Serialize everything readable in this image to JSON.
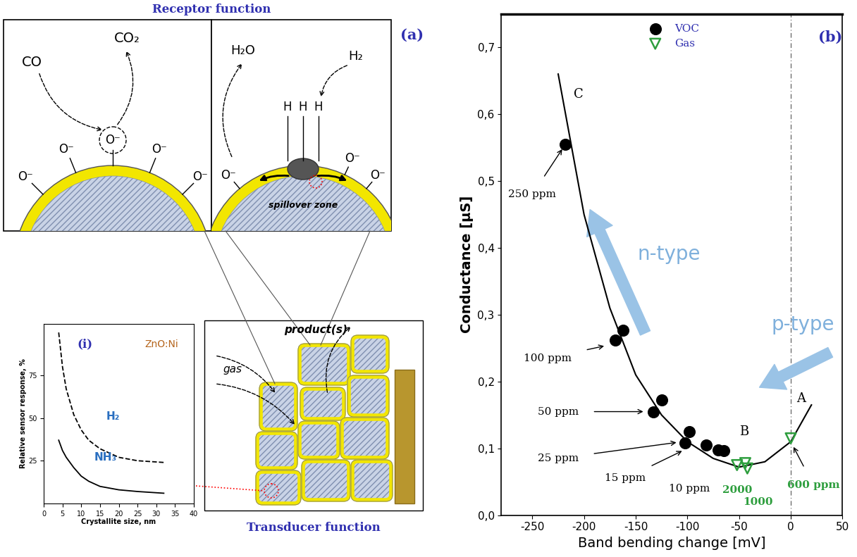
{
  "diagram": {
    "header": "Receptor function",
    "panel_label": "(a)",
    "footer": "Transducer function",
    "co_inset": {
      "reactant": "CO",
      "product": "CO₂",
      "adsorbates": [
        "O⁻",
        "O⁻",
        "O⁻",
        "O⁻",
        "O⁻"
      ]
    },
    "h2_inset": {
      "reactant": "H₂",
      "product": "H₂O",
      "atoms": [
        "H",
        "H",
        "H"
      ],
      "adsorbates": [
        "O⁻",
        "O⁻",
        "O⁻"
      ],
      "zone": "spillover zone"
    },
    "film": {
      "inflow": "gas",
      "outflow": "product(s)"
    }
  },
  "chart_data": [
    {
      "type": "line",
      "panel_label": "(i)",
      "annotation": "ZnO:Ni",
      "xlabel": "Crystallite size, nm",
      "ylabel": "Relative sensor response, %",
      "x": [
        4,
        5,
        6,
        8,
        10,
        12,
        15,
        20,
        25,
        32
      ],
      "series": [
        {
          "name": "H₂",
          "color": "#000000",
          "line_style": "dashed",
          "values": [
            100,
            80,
            67,
            52,
            43,
            37,
            32,
            27,
            25,
            24
          ]
        },
        {
          "name": "NH₃",
          "color": "#000000",
          "line_style": "solid",
          "values": [
            37,
            31,
            27,
            21,
            16,
            13,
            10,
            8,
            7,
            6
          ]
        }
      ],
      "xlim": [
        0,
        40
      ],
      "ylim": [
        0,
        105
      ],
      "xticks": [
        0,
        5,
        10,
        15,
        20,
        25,
        30,
        35,
        40
      ],
      "yticks": [
        25,
        50,
        75
      ]
    },
    {
      "type": "scatter",
      "panel_label": "(b)",
      "xlabel": "Band bending change [mV]",
      "ylabel": "Conductance [µS]",
      "series": [
        {
          "name": "VOC",
          "type": "scatter",
          "color": "#000000",
          "marker": "circle",
          "x": [
            -218,
            -170,
            -162,
            -133,
            -125,
            -102,
            -98,
            -82,
            -70,
            -65
          ],
          "values": [
            0.555,
            0.262,
            0.277,
            0.155,
            0.172,
            0.108,
            0.125,
            0.105,
            0.098,
            0.097
          ]
        },
        {
          "name": "Gas",
          "type": "scatter",
          "color": "#2e9e3e",
          "marker": "open_triangle_down",
          "x": [
            -52,
            -44,
            -42,
            0
          ],
          "values": [
            0.075,
            0.078,
            0.07,
            0.115
          ]
        },
        {
          "type": "line",
          "color": "#000000",
          "line_style": "solid",
          "x": [
            -225,
            -200,
            -175,
            -150,
            -125,
            -100,
            -75,
            -50,
            -25,
            0,
            20
          ],
          "values": [
            0.66,
            0.45,
            0.31,
            0.21,
            0.15,
            0.11,
            0.085,
            0.072,
            0.08,
            0.11,
            0.165
          ]
        }
      ],
      "legend": "upper center",
      "xlim": [
        -280,
        50
      ],
      "ylim": [
        0,
        0.75
      ],
      "xticks": [
        -250,
        -200,
        -150,
        -100,
        -50,
        0,
        50
      ],
      "yticks": [
        {
          "value": 0.0,
          "label": "0,0"
        },
        {
          "value": 0.1,
          "label": "0,1"
        },
        {
          "value": 0.2,
          "label": "0,2"
        },
        {
          "value": 0.3,
          "label": "0,3"
        },
        {
          "value": 0.4,
          "label": "0,4"
        },
        {
          "value": 0.5,
          "label": "0,5"
        },
        {
          "value": 0.6,
          "label": "0,6"
        },
        {
          "value": 0.7,
          "label": "0,7"
        }
      ],
      "vline": 0,
      "points": [
        {
          "label": "C",
          "x": -218,
          "y": 0.555
        },
        {
          "label": "B",
          "x": -45,
          "y": 0.075
        },
        {
          "label": "A",
          "x": 0,
          "y": 0.115
        }
      ],
      "annotations": [
        {
          "text": "250 ppm",
          "x": -218,
          "y": 0.555,
          "color": "#000000"
        },
        {
          "text": "100 ppm",
          "x": -175,
          "y": 0.255,
          "color": "#000000"
        },
        {
          "text": "50 ppm",
          "x": -137,
          "y": 0.155,
          "color": "#000000"
        },
        {
          "text": "25 ppm",
          "x": -105,
          "y": 0.11,
          "color": "#000000"
        },
        {
          "text": "15 ppm",
          "x": -100,
          "y": 0.1,
          "color": "#000000"
        },
        {
          "text": "10 ppm",
          "x": -80,
          "y": 0.09,
          "color": "#000000"
        },
        {
          "text": "2000",
          "x": -52,
          "y": 0.075,
          "color": "#2e9e3e"
        },
        {
          "text": "1000",
          "x": -42,
          "y": 0.07,
          "color": "#2e9e3e"
        },
        {
          "text": "600 ppm",
          "x": 0,
          "y": 0.11,
          "color": "#2e9e3e"
        }
      ],
      "arrows": [
        {
          "text": "n-type"
        },
        {
          "text": "p-type"
        }
      ]
    }
  ]
}
